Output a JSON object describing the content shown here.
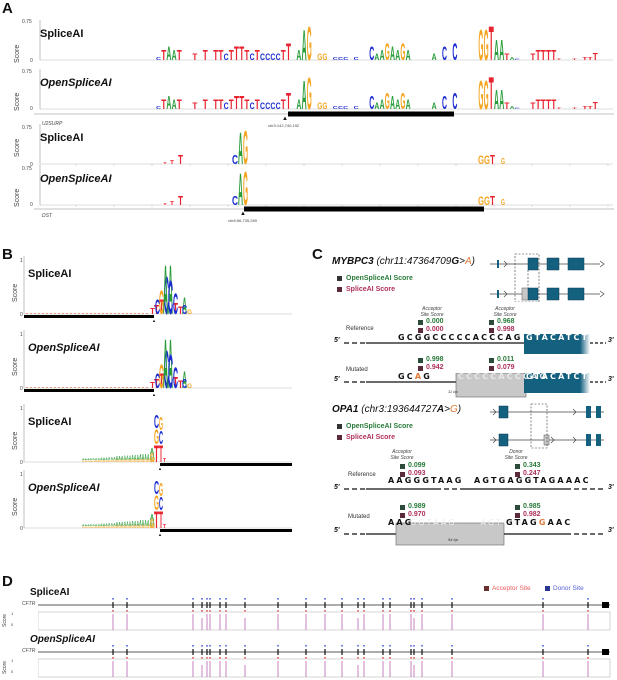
{
  "colors": {
    "A": "#2a9d3a",
    "C": "#1a2bd1",
    "G": "#f4a623",
    "T": "#e8232f",
    "opensplice": "#2a7a3a",
    "splice": "#b0305a",
    "exon": "#14607f",
    "inserted": "#c8c8c8",
    "alt": "#e07b39",
    "acceptor": "#e85a5a",
    "donor": "#5560d8",
    "track": "#b04aa8"
  },
  "panelA": {
    "letter": "A",
    "ylabel": "Score",
    "ytick_top": "0.75",
    "ytick_bottom": "0",
    "examples": [
      {
        "gene": "U2SURP",
        "coordinate": "chr3:142,740,192",
        "tracks": [
          {
            "title": "SpliceAI",
            "italic": false
          },
          {
            "title": "OpenSpliceAI",
            "italic": true
          }
        ]
      },
      {
        "gene": "DST",
        "coordinate": "chr6:56,735,289",
        "tracks": [
          {
            "title": "SpliceAI",
            "italic": false
          },
          {
            "title": "OpenSpliceAI",
            "italic": true
          }
        ]
      }
    ]
  },
  "panelB": {
    "letter": "B",
    "ylabel": "Score",
    "ytick_top": "1",
    "ytick_bottom": "0",
    "tracks": [
      {
        "title": "SpliceAI",
        "site": "Donor"
      },
      {
        "title": "OpenSpliceAI",
        "site": "Donor"
      },
      {
        "title": "SpliceAI",
        "site": "Acceptor"
      },
      {
        "title": "OpenSpliceAI",
        "site": "Acceptor"
      }
    ]
  },
  "panelC": {
    "letter": "C",
    "legend": {
      "opensplice": "OpenSpliceAI Score",
      "splice": "SpliceAI Score"
    },
    "five_prime": "5'",
    "three_prime": "3'",
    "examples": [
      {
        "gene": "MYBPC3",
        "variant_prefix": "(chr11:47364709",
        "ref_base": "G",
        "arrow": ">",
        "alt_base": "A",
        "variant_suffix": ")",
        "score_headers": [
          "Acceptor\nSite Score",
          "Acceptor\nSite Score"
        ],
        "reference": {
          "label": "Reference",
          "scores": [
            {
              "open": "0.000",
              "splice": "0.000"
            },
            {
              "open": "0.968",
              "splice": "0.998"
            }
          ],
          "intron_seq_pre": "GC",
          "intron_bold": "G",
          "intron_seq_post": "GCCCCCACCCAG",
          "exon_seq": "GTACATCTTTG"
        },
        "mutated": {
          "label": "Mutated",
          "scores": [
            {
              "open": "0.998",
              "splice": "0.942"
            },
            {
              "open": "0.011",
              "splice": "0.079"
            }
          ],
          "pre_seq": "GC",
          "alt_seq": "A",
          "post_seq": "G",
          "inserted_seq": "CCCCCACCCAG",
          "exon_seq": "GTACATCTTTG",
          "inserted_length": "11 bp"
        }
      },
      {
        "gene": "OPA1",
        "variant_prefix": "(chr3:193644727",
        "ref_base": "A",
        "arrow": ">",
        "alt_base": "G",
        "variant_suffix": ")",
        "score_headers": [
          "Acceptor\nSite Score",
          "Donor\nSite Score"
        ],
        "reference": {
          "label": "Reference",
          "scores": [
            {
              "open": "0.099",
              "splice": "0.093"
            },
            {
              "open": "0.343",
              "splice": "0.247"
            }
          ],
          "seq1": "AAGGGTAAG",
          "seq2_pre": "AGTGAGGTAG",
          "seq2_bold": "A",
          "seq2_post": "AAC"
        },
        "mutated": {
          "label": "Mutated",
          "scores": [
            {
              "open": "0.989",
              "splice": "0.970"
            },
            {
              "open": "0.985",
              "splice": "0.982"
            }
          ],
          "pre_seq": "AAG",
          "inserted_seq": "GGTAAG ··· AGTGAG",
          "post_seq1": "GTAG",
          "alt_seq": "G",
          "post_seq2": "AAC",
          "inserted_length": "94 bp"
        }
      }
    ]
  },
  "panelD": {
    "letter": "D",
    "gene": "CFTR",
    "ylabel": "Score",
    "ytick_top": "1",
    "ytick_bottom": "0",
    "legend": {
      "acceptor": "Acceptor Site",
      "donor": "Donor Site"
    },
    "tracks": [
      {
        "title": "SpliceAI",
        "italic": false
      },
      {
        "title": "OpenSpliceAI",
        "italic": true
      }
    ]
  }
}
